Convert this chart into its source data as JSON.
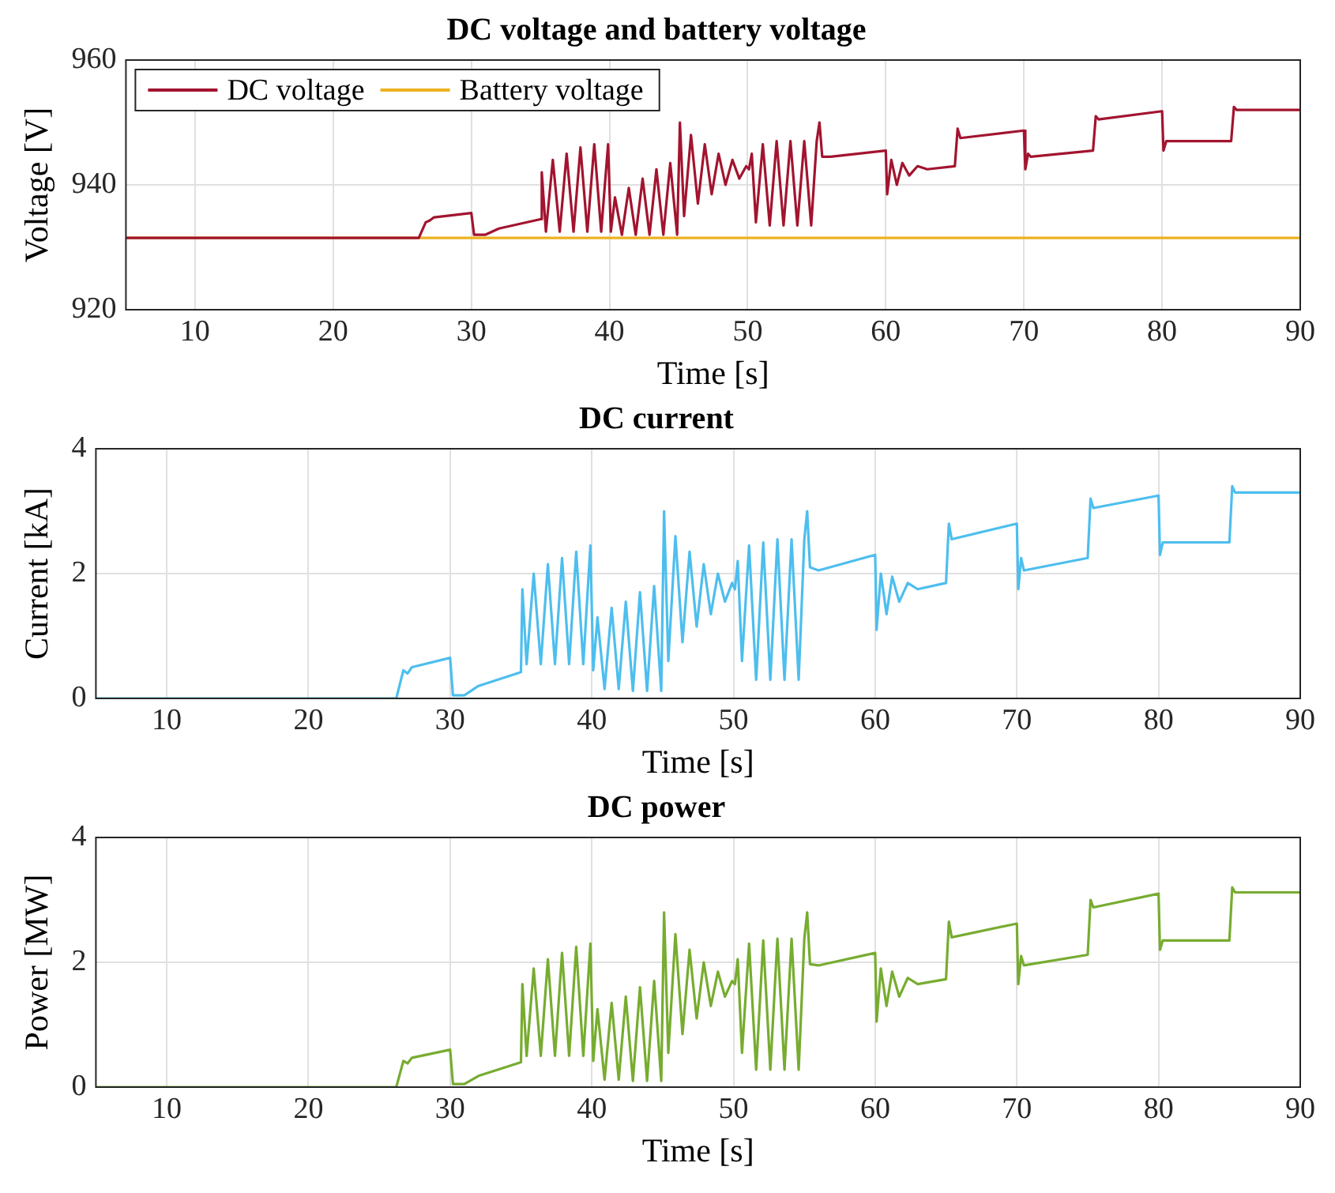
{
  "chart_data": [
    {
      "type": "line",
      "title": "DC voltage and battery voltage",
      "xlabel": "Time [s]",
      "ylabel": "Voltage [V]",
      "xlim": [
        5,
        90
      ],
      "xticks": [
        10,
        20,
        30,
        40,
        50,
        60,
        70,
        80,
        90
      ],
      "ylim": [
        920,
        960
      ],
      "yticks": [
        920,
        940,
        960
      ],
      "grid": true,
      "legend": "top left",
      "series": [
        {
          "name": "DC voltage",
          "color": "#a2142f",
          "x": [
            5,
            26.2,
            26.7,
            27,
            27.3,
            30,
            30.2,
            31,
            32,
            35,
            35.1,
            35.4,
            35.9,
            36.4,
            36.9,
            37.4,
            37.9,
            38.4,
            38.9,
            39.4,
            39.9,
            40.1,
            40.4,
            40.9,
            41.4,
            41.9,
            42.4,
            42.9,
            43.4,
            43.9,
            44.4,
            44.9,
            45.1,
            45.4,
            45.9,
            46.4,
            46.9,
            47.4,
            47.9,
            48.4,
            48.9,
            49.4,
            49.9,
            50.1,
            50.3,
            50.6,
            51.1,
            51.6,
            52.1,
            52.6,
            53.1,
            53.6,
            54.1,
            54.6,
            55,
            55.2,
            55.4,
            56,
            60,
            60.1,
            60.4,
            60.8,
            61.2,
            61.7,
            62.3,
            63,
            65,
            65.2,
            65.4,
            70,
            70.1,
            70.3,
            70.5,
            75,
            75.2,
            75.4,
            80,
            80.1,
            80.3,
            85,
            85.2,
            85.4,
            90
          ],
          "values": [
            931.5,
            931.5,
            934,
            934.3,
            934.8,
            935.5,
            932,
            932,
            933,
            934.5,
            942,
            932.5,
            944,
            932.5,
            945,
            932.5,
            946,
            932.5,
            946.5,
            932.5,
            946.5,
            932.5,
            938,
            932,
            939.5,
            932,
            941,
            932,
            942.5,
            932,
            943.5,
            932,
            950,
            935,
            948,
            937,
            946.5,
            938.5,
            945,
            940,
            944,
            941,
            943,
            942.5,
            945,
            934,
            946.5,
            933.5,
            947,
            933.5,
            947,
            933.5,
            947,
            933.5,
            947,
            950,
            944.5,
            944.5,
            945.5,
            938.5,
            944,
            940,
            943.5,
            941.5,
            943,
            942.5,
            943,
            949,
            947.5,
            948.7,
            942.5,
            945,
            944.5,
            945.5,
            951,
            950.5,
            951.8,
            945.5,
            947,
            947,
            952.5,
            952,
            952
          ]
        },
        {
          "name": "Battery voltage",
          "color": "#edb120",
          "x": [
            5,
            90
          ],
          "values": [
            931.5,
            931.5
          ]
        }
      ]
    },
    {
      "type": "line",
      "title": "DC current",
      "xlabel": "Time [s]",
      "ylabel": "Current [kA]",
      "xlim": [
        5,
        90
      ],
      "xticks": [
        10,
        20,
        30,
        40,
        50,
        60,
        70,
        80,
        90
      ],
      "ylim": [
        0,
        4
      ],
      "yticks": [
        0,
        2,
        4
      ],
      "grid": true,
      "series": [
        {
          "color": "#4dbeee",
          "x": [
            5,
            26.2,
            26.7,
            27,
            27.3,
            30,
            30.2,
            31,
            32,
            35,
            35.1,
            35.4,
            35.9,
            36.4,
            36.9,
            37.4,
            37.9,
            38.4,
            38.9,
            39.4,
            39.9,
            40.1,
            40.4,
            40.9,
            41.4,
            41.9,
            42.4,
            42.9,
            43.4,
            43.9,
            44.4,
            44.9,
            45.1,
            45.4,
            45.9,
            46.4,
            46.9,
            47.4,
            47.9,
            48.4,
            48.9,
            49.4,
            49.9,
            50.1,
            50.3,
            50.6,
            51.1,
            51.6,
            52.1,
            52.6,
            53.1,
            53.6,
            54.1,
            54.6,
            55,
            55.2,
            55.4,
            56,
            60,
            60.1,
            60.4,
            60.8,
            61.2,
            61.7,
            62.3,
            63,
            65,
            65.2,
            65.4,
            70,
            70.1,
            70.3,
            70.5,
            75,
            75.2,
            75.4,
            80,
            80.1,
            80.3,
            85,
            85.2,
            85.4,
            90
          ],
          "values": [
            0,
            0,
            0.45,
            0.4,
            0.5,
            0.65,
            0.05,
            0.05,
            0.2,
            0.42,
            1.75,
            0.55,
            2.0,
            0.55,
            2.15,
            0.55,
            2.25,
            0.55,
            2.35,
            0.55,
            2.45,
            0.45,
            1.3,
            0.15,
            1.45,
            0.15,
            1.55,
            0.12,
            1.7,
            0.12,
            1.8,
            0.12,
            3.0,
            0.6,
            2.6,
            0.9,
            2.35,
            1.15,
            2.15,
            1.35,
            2.0,
            1.55,
            1.85,
            1.75,
            2.2,
            0.6,
            2.45,
            0.3,
            2.5,
            0.3,
            2.55,
            0.3,
            2.55,
            0.3,
            2.55,
            3.0,
            2.1,
            2.05,
            2.3,
            1.1,
            2.0,
            1.35,
            1.95,
            1.55,
            1.85,
            1.75,
            1.85,
            2.8,
            2.55,
            2.8,
            1.75,
            2.25,
            2.05,
            2.25,
            3.2,
            3.05,
            3.25,
            2.3,
            2.5,
            2.5,
            3.4,
            3.3,
            3.3
          ]
        }
      ]
    },
    {
      "type": "line",
      "title": "DC power",
      "xlabel": "Time [s]",
      "ylabel": "Power [MW]",
      "xlim": [
        5,
        90
      ],
      "xticks": [
        10,
        20,
        30,
        40,
        50,
        60,
        70,
        80,
        90
      ],
      "ylim": [
        0,
        4
      ],
      "yticks": [
        0,
        2,
        4
      ],
      "grid": true,
      "series": [
        {
          "color": "#77ac30",
          "x": [
            5,
            26.2,
            26.7,
            27,
            27.3,
            30,
            30.2,
            31,
            32,
            35,
            35.1,
            35.4,
            35.9,
            36.4,
            36.9,
            37.4,
            37.9,
            38.4,
            38.9,
            39.4,
            39.9,
            40.1,
            40.4,
            40.9,
            41.4,
            41.9,
            42.4,
            42.9,
            43.4,
            43.9,
            44.4,
            44.9,
            45.1,
            45.4,
            45.9,
            46.4,
            46.9,
            47.4,
            47.9,
            48.4,
            48.9,
            49.4,
            49.9,
            50.1,
            50.3,
            50.6,
            51.1,
            51.6,
            52.1,
            52.6,
            53.1,
            53.6,
            54.1,
            54.6,
            55,
            55.2,
            55.4,
            56,
            60,
            60.1,
            60.4,
            60.8,
            61.2,
            61.7,
            62.3,
            63,
            65,
            65.2,
            65.4,
            70,
            70.1,
            70.3,
            70.5,
            75,
            75.2,
            75.4,
            80,
            80.1,
            80.3,
            85,
            85.2,
            85.4,
            90
          ],
          "values": [
            0,
            0,
            0.42,
            0.38,
            0.47,
            0.6,
            0.05,
            0.05,
            0.18,
            0.4,
            1.65,
            0.5,
            1.9,
            0.5,
            2.05,
            0.5,
            2.15,
            0.5,
            2.25,
            0.5,
            2.3,
            0.42,
            1.25,
            0.12,
            1.35,
            0.12,
            1.45,
            0.1,
            1.6,
            0.1,
            1.7,
            0.1,
            2.8,
            0.55,
            2.45,
            0.85,
            2.2,
            1.1,
            2.0,
            1.3,
            1.85,
            1.45,
            1.7,
            1.65,
            2.05,
            0.55,
            2.3,
            0.28,
            2.35,
            0.28,
            2.38,
            0.28,
            2.38,
            0.28,
            2.38,
            2.8,
            1.97,
            1.95,
            2.15,
            1.05,
            1.9,
            1.3,
            1.85,
            1.45,
            1.75,
            1.65,
            1.73,
            2.65,
            2.4,
            2.62,
            1.65,
            2.1,
            1.95,
            2.12,
            3.0,
            2.88,
            3.1,
            2.2,
            2.35,
            2.35,
            3.2,
            3.12,
            3.12
          ]
        }
      ]
    }
  ]
}
